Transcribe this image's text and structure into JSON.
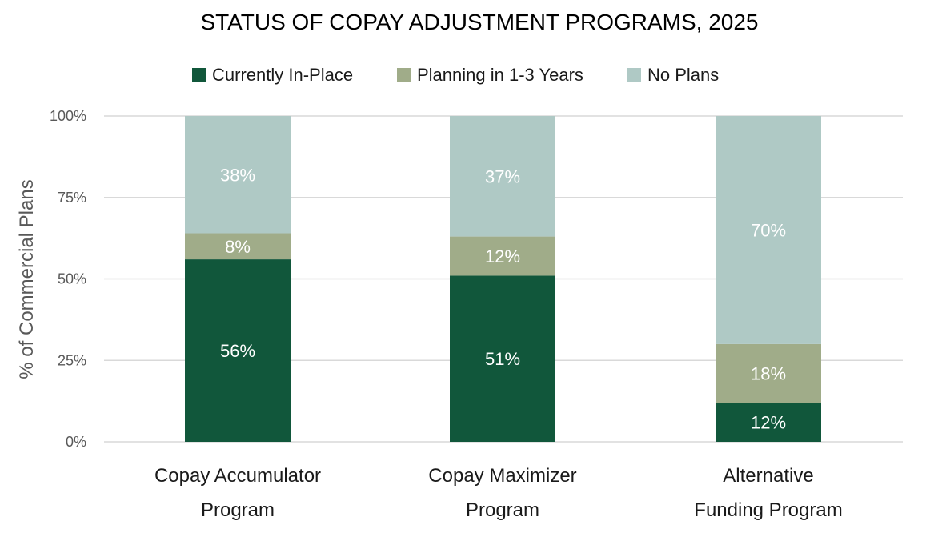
{
  "chart_data": {
    "type": "bar",
    "stacked": true,
    "title": "STATUS OF COPAY ADJUSTMENT PROGRAMS, 2025",
    "ylabel": "% of Commercial Plans",
    "xlabel": "",
    "ylim": [
      0,
      100
    ],
    "yticks": [
      {
        "value": 0,
        "label": "0%"
      },
      {
        "value": 25,
        "label": "25%"
      },
      {
        "value": 50,
        "label": "50%"
      },
      {
        "value": 75,
        "label": "75%"
      },
      {
        "value": 100,
        "label": "100%"
      }
    ],
    "grid": true,
    "legend_position": "top",
    "categories": [
      [
        "Copay Accumulator",
        "Program"
      ],
      [
        "Copay Maximizer",
        "Program"
      ],
      [
        "Alternative",
        "Funding Program"
      ]
    ],
    "series": [
      {
        "name": "Currently In-Place",
        "color": "#11573b",
        "values": [
          56,
          51,
          12
        ],
        "labels": [
          "56%",
          "51%",
          "12%"
        ]
      },
      {
        "name": "Planning in 1-3 Years",
        "color": "#a0ac89",
        "values": [
          8,
          12,
          18
        ],
        "labels": [
          "8%",
          "12%",
          "18%"
        ]
      },
      {
        "name": "No Plans",
        "color": "#afc9c5",
        "values": [
          38,
          37,
          70
        ],
        "labels": [
          "38%",
          "37%",
          "70%"
        ]
      }
    ]
  }
}
